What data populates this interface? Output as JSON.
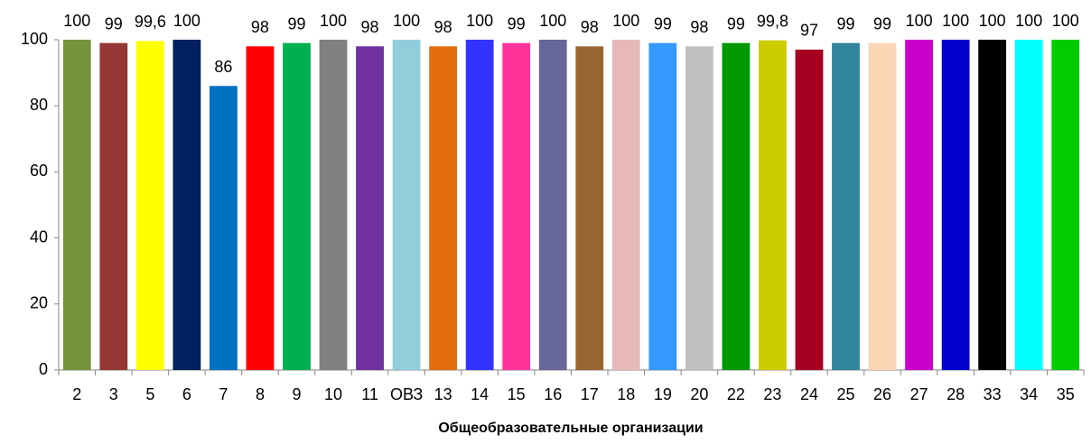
{
  "chart_data": {
    "type": "bar",
    "x_label": "Общеобразовательные организации",
    "categories": [
      "2",
      "3",
      "5",
      "6",
      "7",
      "8",
      "9",
      "10",
      "11",
      "ОВЗ",
      "13",
      "14",
      "15",
      "16",
      "17",
      "18",
      "19",
      "20",
      "22",
      "23",
      "24",
      "25",
      "26",
      "27",
      "28",
      "33",
      "34",
      "35"
    ],
    "values": [
      100,
      99,
      99.6,
      100,
      86,
      98,
      99,
      100,
      98,
      100,
      98,
      100,
      99,
      100,
      98,
      100,
      99,
      98,
      99,
      99.8,
      97,
      99,
      99,
      100,
      100,
      100,
      100,
      100
    ],
    "value_labels": [
      "100",
      "99",
      "99,6",
      "100",
      "86",
      "98",
      "99",
      "100",
      "98",
      "100",
      "98",
      "100",
      "99",
      "100",
      "98",
      "100",
      "99",
      "98",
      "99",
      "99,8",
      "97",
      "99",
      "99",
      "100",
      "100",
      "100",
      "100",
      "100"
    ],
    "colors": [
      "#77933c",
      "#953735",
      "#ffff00",
      "#002060",
      "#0070c0",
      "#ff0000",
      "#00b050",
      "#808080",
      "#7030a0",
      "#92cddc",
      "#e46c0a",
      "#3333ff",
      "#ff3399",
      "#666699",
      "#996633",
      "#e6b9b8",
      "#3399ff",
      "#bfbfbf",
      "#009900",
      "#cccc00",
      "#a50021",
      "#31859c",
      "#fcd5b5",
      "#cc00cc",
      "#0000cc",
      "#000000",
      "#00ffff",
      "#00cc00"
    ],
    "ylim": [
      0,
      100
    ],
    "yticks": [
      0,
      20,
      40,
      60,
      80,
      100
    ],
    "grid": false
  }
}
